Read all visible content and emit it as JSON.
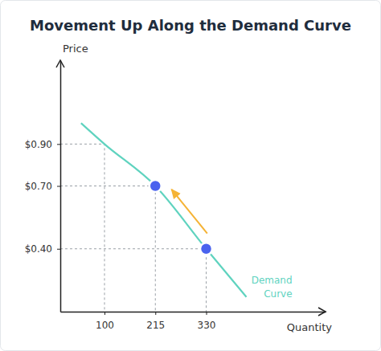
{
  "chart_data": {
    "type": "line",
    "title": "Movement Up Along the Demand Curve",
    "x_label": "Quantity",
    "y_label": "Price",
    "xlim": [
      0,
      600
    ],
    "ylim": [
      0.1,
      1.3
    ],
    "xticks": [
      100,
      215,
      330
    ],
    "yticks": [
      {
        "value": 0.4,
        "label": "$0.40"
      },
      {
        "value": 0.7,
        "label": "$0.70"
      },
      {
        "value": 0.9,
        "label": "$0.90"
      }
    ],
    "series": [
      {
        "name": "Demand Curve",
        "type": "line",
        "color": "#5fd3bf",
        "x": [
          47,
          100,
          215,
          330,
          421
        ],
        "values": [
          1.0,
          0.9,
          0.7,
          0.4,
          0.17
        ]
      },
      {
        "type": "scatter",
        "color": "#4a63ee",
        "marker": "circle",
        "x": [
          215,
          330
        ],
        "values": [
          0.7,
          0.4
        ]
      }
    ]
  }
}
